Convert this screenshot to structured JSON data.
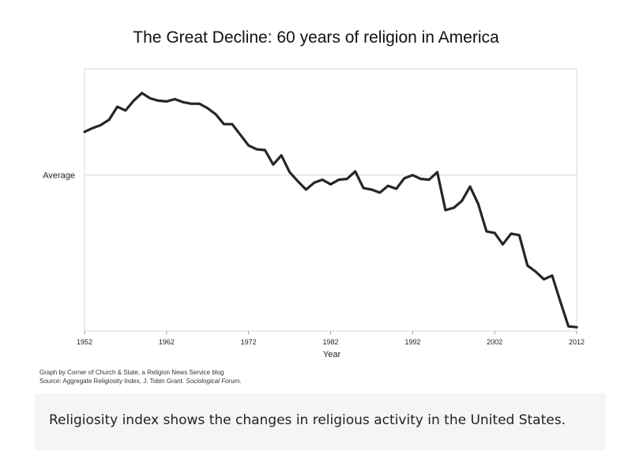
{
  "chart_data": {
    "type": "line",
    "title": "The Great Decline: 60 years of religion in America",
    "xlabel": "Year",
    "ylabel": "",
    "x_ticks": [
      1952,
      1962,
      1972,
      1982,
      1992,
      2002,
      2012
    ],
    "y_reference": {
      "label": "Average",
      "value": 0
    },
    "xlim": [
      1952,
      2012
    ],
    "ylim": [
      -2.05,
      1.4
    ],
    "grid": false,
    "line_color": "#262626",
    "series": [
      {
        "name": "",
        "x": [
          1952,
          1953,
          1954,
          1955,
          1956,
          1957,
          1958,
          1959,
          1960,
          1961,
          1962,
          1963,
          1964,
          1965,
          1966,
          1967,
          1968,
          1969,
          1970,
          1971,
          1972,
          1973,
          1974,
          1975,
          1976,
          1977,
          1978,
          1979,
          1980,
          1981,
          1982,
          1983,
          1984,
          1985,
          1986,
          1987,
          1988,
          1989,
          1990,
          1991,
          1992,
          1993,
          1994,
          1995,
          1996,
          1997,
          1998,
          1999,
          2000,
          2001,
          2002,
          2003,
          2004,
          2005,
          2006,
          2007,
          2008,
          2009,
          2010,
          2011,
          2012
        ],
        "y": [
          0.57,
          0.62,
          0.66,
          0.73,
          0.9,
          0.85,
          0.98,
          1.08,
          1.01,
          0.98,
          0.97,
          1.0,
          0.96,
          0.94,
          0.94,
          0.88,
          0.8,
          0.67,
          0.67,
          0.53,
          0.39,
          0.34,
          0.33,
          0.14,
          0.26,
          0.04,
          -0.08,
          -0.19,
          -0.1,
          -0.06,
          -0.12,
          -0.06,
          -0.05,
          0.05,
          -0.17,
          -0.19,
          -0.23,
          -0.14,
          -0.18,
          -0.04,
          0.0,
          -0.05,
          -0.06,
          0.04,
          -0.46,
          -0.43,
          -0.34,
          -0.15,
          -0.38,
          -0.74,
          -0.76,
          -0.91,
          -0.77,
          -0.79,
          -1.19,
          -1.27,
          -1.37,
          -1.32,
          -1.66,
          -1.99,
          -2.0
        ]
      }
    ]
  },
  "footer": {
    "credit_line": "Graph by Corner of Church & State, a Religion News Service blog",
    "source_prefix": "Source: Aggregate Religiosity Index, J. Tobin Grant. ",
    "source_journal": "Sociological Forum."
  },
  "caption": {
    "text": "Religiosity index shows the changes in religious activity in the United States."
  }
}
